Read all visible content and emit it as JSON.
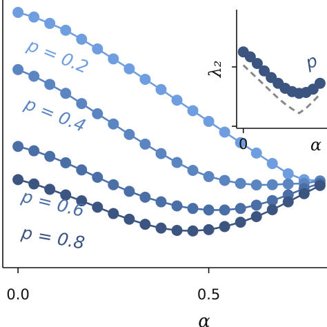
{
  "chart_data": [
    {
      "type": "line",
      "xlabel": "α",
      "ylabel": "",
      "x_ticks": [
        "0.0",
        "0.5"
      ],
      "xlim": [
        -0.04,
        0.81
      ],
      "ylim": [
        0,
        1
      ],
      "grid": false,
      "markers": true,
      "x": [
        0.0,
        0.0417,
        0.0833,
        0.125,
        0.1667,
        0.2083,
        0.25,
        0.2917,
        0.3333,
        0.375,
        0.4167,
        0.4583,
        0.5,
        0.5417,
        0.5833,
        0.625,
        0.6667,
        0.7083,
        0.75,
        0.7917
      ],
      "series": [
        {
          "name": "p = 0.2",
          "color": "#6f9ee0",
          "values": [
            1.0,
            0.982,
            0.957,
            0.93,
            0.895,
            0.857,
            0.818,
            0.779,
            0.738,
            0.698,
            0.656,
            0.615,
            0.573,
            0.531,
            0.49,
            0.449,
            0.408,
            0.368,
            0.345,
            0.34
          ]
        },
        {
          "name": "p = 0.4",
          "color": "#5b85c0",
          "values": [
            0.776,
            0.75,
            0.718,
            0.683,
            0.643,
            0.603,
            0.563,
            0.522,
            0.484,
            0.447,
            0.412,
            0.381,
            0.357,
            0.342,
            0.33,
            0.324,
            0.325,
            0.328,
            0.33,
            0.34
          ]
        },
        {
          "name": "p = 0.6",
          "color": "#4a6ea6",
          "values": [
            0.475,
            0.458,
            0.436,
            0.411,
            0.383,
            0.354,
            0.325,
            0.299,
            0.276,
            0.258,
            0.242,
            0.232,
            0.226,
            0.226,
            0.232,
            0.245,
            0.263,
            0.285,
            0.31,
            0.33
          ]
        },
        {
          "name": "p = 0.8",
          "color": "#3b5580",
          "values": [
            0.345,
            0.328,
            0.307,
            0.285,
            0.262,
            0.237,
            0.212,
            0.19,
            0.17,
            0.155,
            0.146,
            0.144,
            0.149,
            0.161,
            0.178,
            0.2,
            0.227,
            0.258,
            0.29,
            0.322
          ]
        }
      ]
    },
    {
      "type": "line",
      "xlabel": "α",
      "ylabel": "λ₂",
      "x_ticks": [
        "0"
      ],
      "xlim": [
        -0.04,
        0.5
      ],
      "ylim": [
        0,
        1
      ],
      "markers": true,
      "x": [
        0.0,
        0.0417,
        0.0833,
        0.125,
        0.1667,
        0.2083,
        0.25,
        0.2917,
        0.3333,
        0.375,
        0.4167,
        0.4583
      ],
      "series": [
        {
          "name": "p",
          "color": "#3b5580",
          "values": [
            0.74,
            0.68,
            0.6,
            0.51,
            0.43,
            0.36,
            0.3,
            0.26,
            0.24,
            0.25,
            0.29,
            0.36
          ]
        },
        {
          "name": "",
          "color": "#888888",
          "style": "dashed",
          "values": [
            0.58,
            0.5,
            0.42,
            0.34,
            0.26,
            0.18,
            0.11,
            0.05,
            0.0,
            0.06,
            0.14,
            0.23
          ]
        }
      ]
    }
  ]
}
